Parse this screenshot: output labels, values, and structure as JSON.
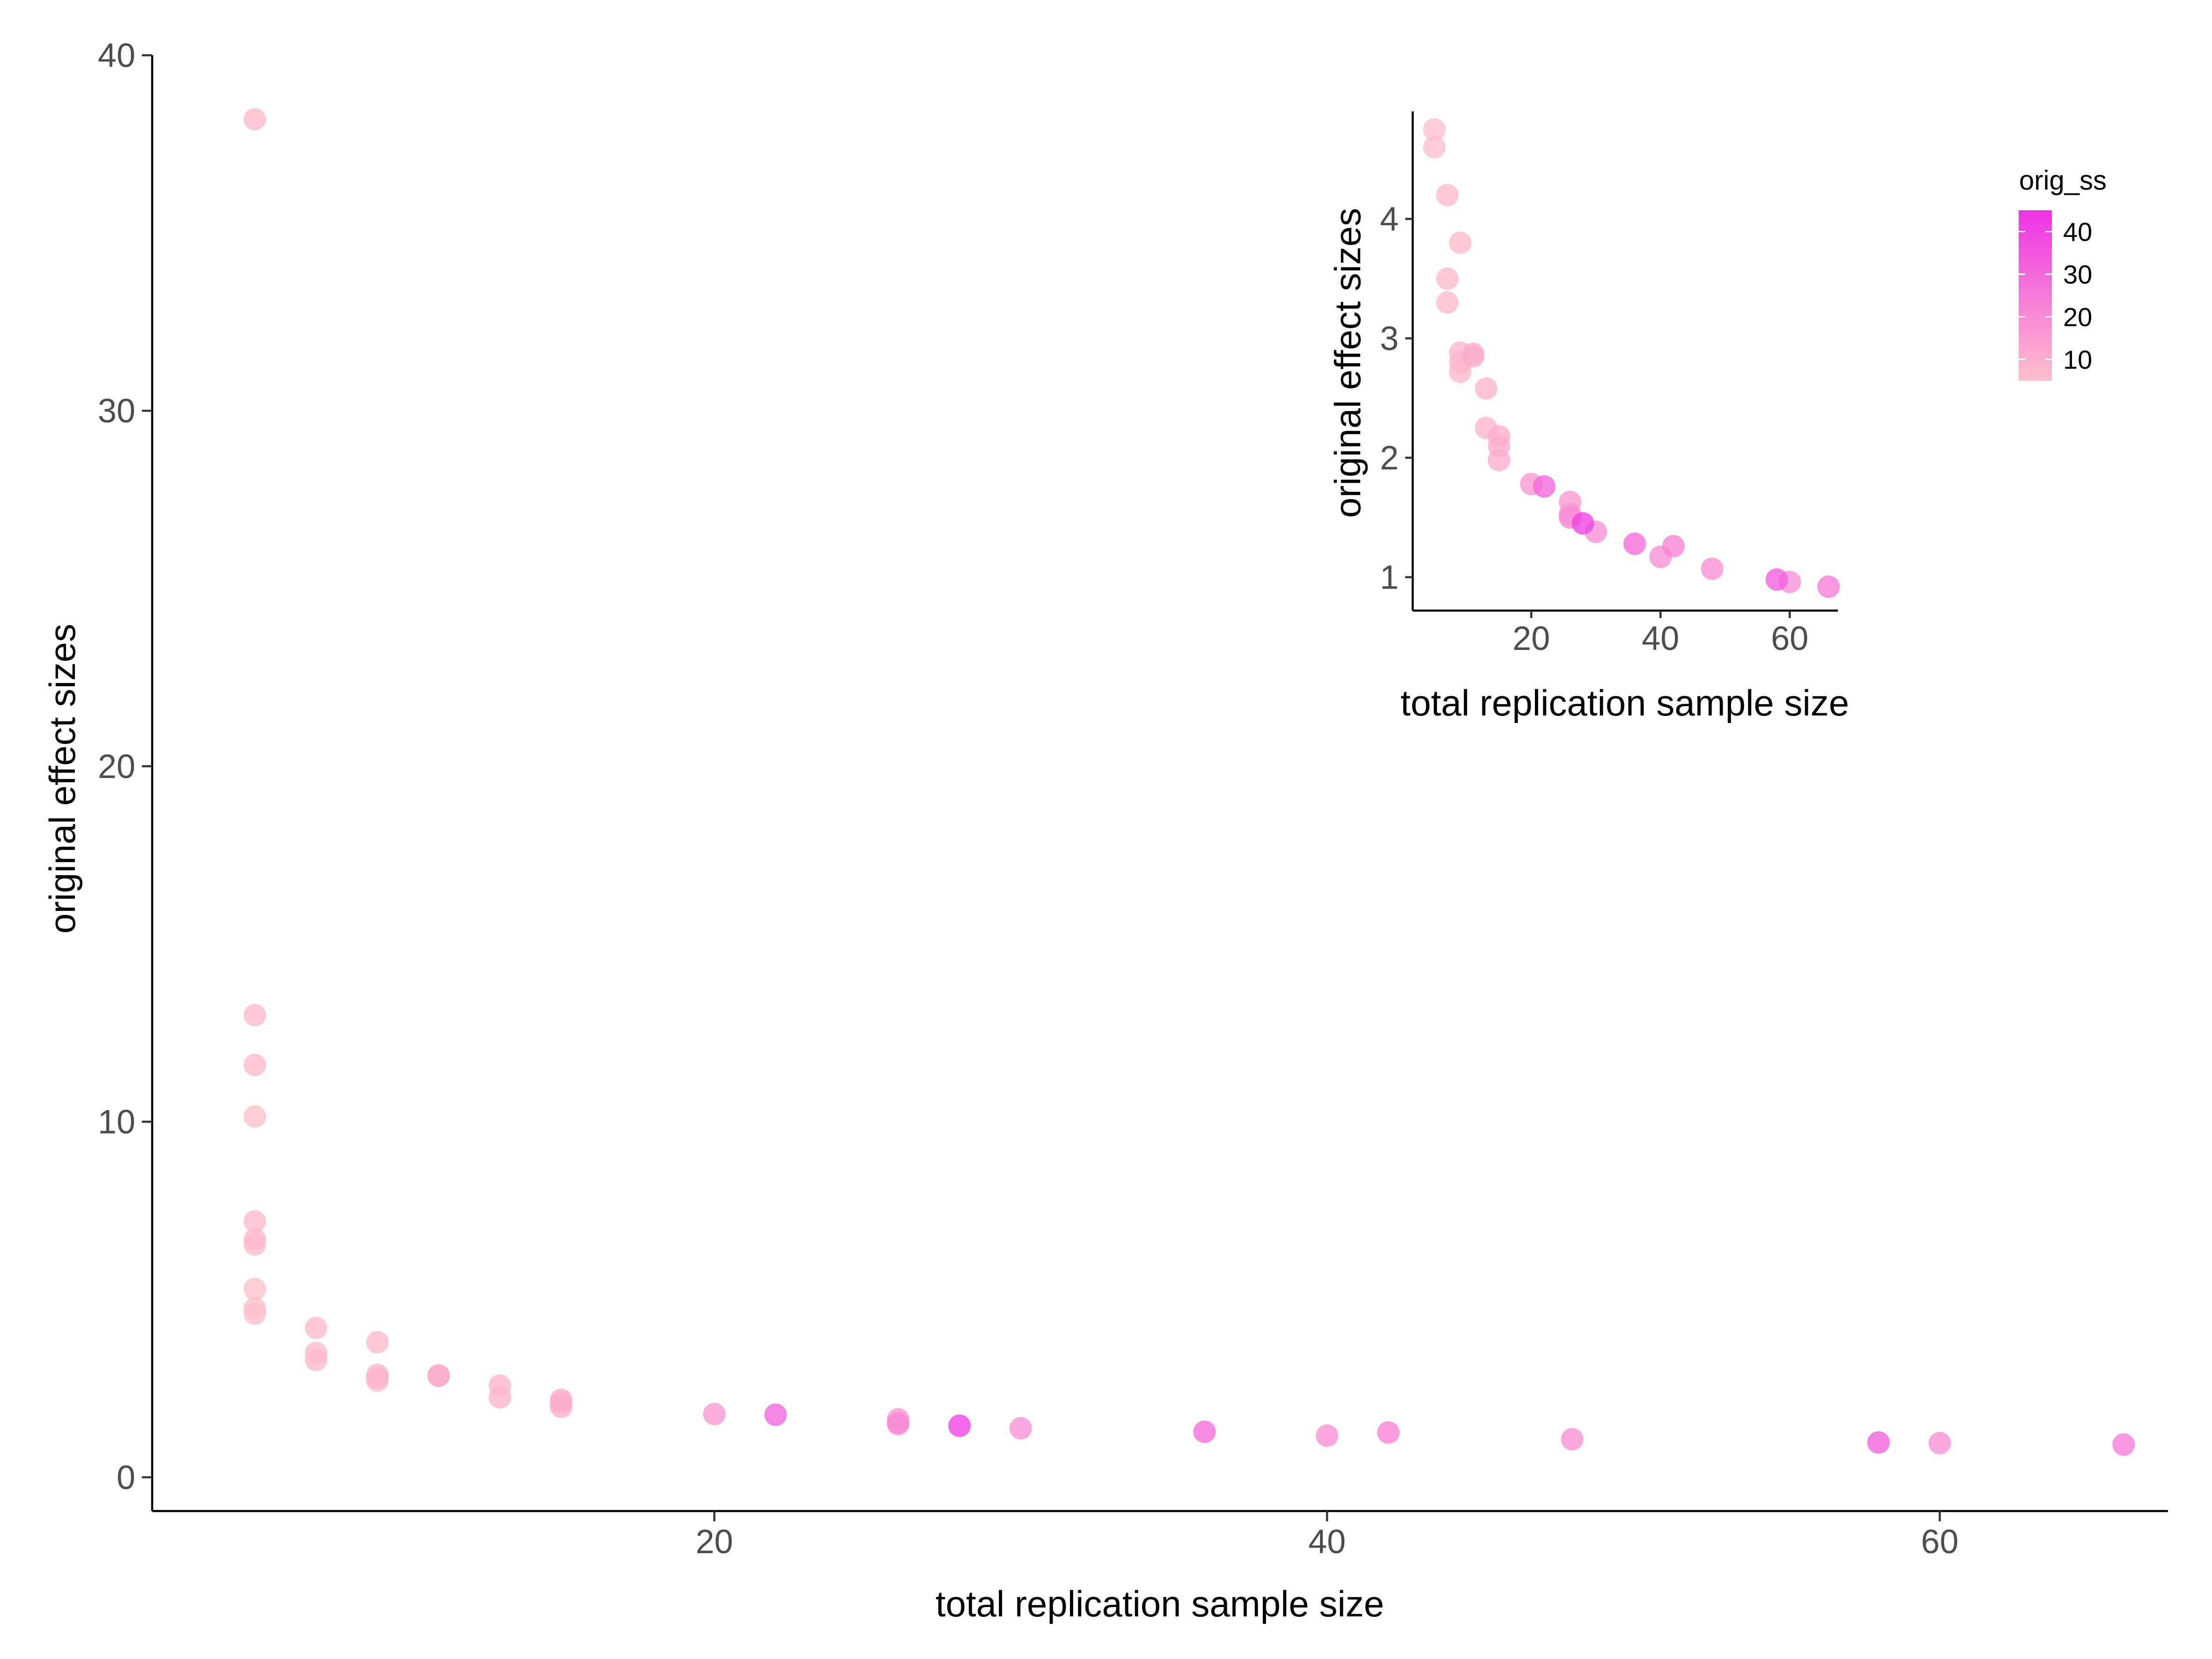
{
  "chart_data": [
    {
      "type": "scatter",
      "title": "",
      "xlabel": "total replication sample size",
      "ylabel": "original effect sizes",
      "xlim": [
        1.65,
        67.45
      ],
      "ylim": [
        -0.95,
        40
      ],
      "xticks": [
        20,
        40,
        60
      ],
      "yticks": [
        0,
        10,
        20,
        30,
        40
      ],
      "grid": false,
      "color_by": "orig_ss",
      "points": [
        {
          "x": 5,
          "y": 38.2,
          "c": 6
        },
        {
          "x": 5,
          "y": 13.0,
          "c": 6
        },
        {
          "x": 5,
          "y": 11.6,
          "c": 6
        },
        {
          "x": 5,
          "y": 10.15,
          "c": 5
        },
        {
          "x": 5,
          "y": 7.2,
          "c": 6
        },
        {
          "x": 5,
          "y": 6.7,
          "c": 6
        },
        {
          "x": 5,
          "y": 6.55,
          "c": 6
        },
        {
          "x": 5,
          "y": 5.3,
          "c": 5
        },
        {
          "x": 5,
          "y": 4.75,
          "c": 5
        },
        {
          "x": 5,
          "y": 4.6,
          "c": 5
        },
        {
          "x": 7,
          "y": 4.2,
          "c": 6
        },
        {
          "x": 7,
          "y": 3.5,
          "c": 6
        },
        {
          "x": 7,
          "y": 3.3,
          "c": 6
        },
        {
          "x": 9,
          "y": 3.8,
          "c": 6
        },
        {
          "x": 9,
          "y": 2.88,
          "c": 8
        },
        {
          "x": 9,
          "y": 2.8,
          "c": 8
        },
        {
          "x": 9,
          "y": 2.72,
          "c": 6
        },
        {
          "x": 11,
          "y": 2.87,
          "c": 10
        },
        {
          "x": 11,
          "y": 2.85,
          "c": 10
        },
        {
          "x": 13,
          "y": 2.58,
          "c": 8
        },
        {
          "x": 13,
          "y": 2.25,
          "c": 8
        },
        {
          "x": 15,
          "y": 2.18,
          "c": 10
        },
        {
          "x": 15,
          "y": 2.1,
          "c": 10
        },
        {
          "x": 15,
          "y": 1.98,
          "c": 10
        },
        {
          "x": 20,
          "y": 1.78,
          "c": 16
        },
        {
          "x": 22,
          "y": 1.76,
          "c": 30
        },
        {
          "x": 26,
          "y": 1.63,
          "c": 16
        },
        {
          "x": 26,
          "y": 1.53,
          "c": 16
        },
        {
          "x": 26,
          "y": 1.5,
          "c": 20
        },
        {
          "x": 28,
          "y": 1.45,
          "c": 40
        },
        {
          "x": 30,
          "y": 1.38,
          "c": 18
        },
        {
          "x": 36,
          "y": 1.28,
          "c": 28
        },
        {
          "x": 40,
          "y": 1.17,
          "c": 18
        },
        {
          "x": 42,
          "y": 1.26,
          "c": 22
        },
        {
          "x": 48,
          "y": 1.07,
          "c": 18
        },
        {
          "x": 58,
          "y": 0.98,
          "c": 32
        },
        {
          "x": 60,
          "y": 0.96,
          "c": 18
        },
        {
          "x": 66,
          "y": 0.92,
          "c": 24
        }
      ]
    },
    {
      "type": "scatter",
      "title": "",
      "xlabel": "total replication sample size",
      "ylabel": "original effect sizes",
      "xlim": [
        1.65,
        67.45
      ],
      "ylim": [
        0.72,
        4.9
      ],
      "xticks": [
        20,
        40,
        60
      ],
      "yticks": [
        1,
        2,
        3,
        4
      ],
      "grid": false,
      "color_by": "orig_ss",
      "points": [
        {
          "x": 5,
          "y": 4.75,
          "c": 5
        },
        {
          "x": 5,
          "y": 4.6,
          "c": 5
        },
        {
          "x": 7,
          "y": 4.2,
          "c": 6
        },
        {
          "x": 7,
          "y": 3.5,
          "c": 6
        },
        {
          "x": 7,
          "y": 3.3,
          "c": 6
        },
        {
          "x": 9,
          "y": 3.8,
          "c": 6
        },
        {
          "x": 9,
          "y": 2.88,
          "c": 8
        },
        {
          "x": 9,
          "y": 2.8,
          "c": 8
        },
        {
          "x": 9,
          "y": 2.72,
          "c": 6
        },
        {
          "x": 11,
          "y": 2.87,
          "c": 10
        },
        {
          "x": 11,
          "y": 2.85,
          "c": 10
        },
        {
          "x": 13,
          "y": 2.58,
          "c": 8
        },
        {
          "x": 13,
          "y": 2.25,
          "c": 8
        },
        {
          "x": 15,
          "y": 2.18,
          "c": 10
        },
        {
          "x": 15,
          "y": 2.1,
          "c": 10
        },
        {
          "x": 15,
          "y": 1.98,
          "c": 10
        },
        {
          "x": 20,
          "y": 1.78,
          "c": 16
        },
        {
          "x": 22,
          "y": 1.76,
          "c": 30
        },
        {
          "x": 26,
          "y": 1.63,
          "c": 16
        },
        {
          "x": 26,
          "y": 1.53,
          "c": 16
        },
        {
          "x": 26,
          "y": 1.5,
          "c": 20
        },
        {
          "x": 28,
          "y": 1.45,
          "c": 40
        },
        {
          "x": 30,
          "y": 1.38,
          "c": 18
        },
        {
          "x": 36,
          "y": 1.28,
          "c": 28
        },
        {
          "x": 40,
          "y": 1.17,
          "c": 18
        },
        {
          "x": 42,
          "y": 1.26,
          "c": 22
        },
        {
          "x": 48,
          "y": 1.07,
          "c": 18
        },
        {
          "x": 58,
          "y": 0.98,
          "c": 32
        },
        {
          "x": 60,
          "y": 0.96,
          "c": 18
        },
        {
          "x": 66,
          "y": 0.92,
          "c": 24
        }
      ]
    }
  ],
  "legend": {
    "title": "orig_ss",
    "labels": [
      "40",
      "30",
      "20",
      "10"
    ],
    "breaks": [
      40,
      30,
      20,
      10
    ],
    "range": [
      5,
      45
    ],
    "low_color": "#FFC0CB",
    "high_color": "#EE33E6",
    "point_opacity": 0.8
  }
}
